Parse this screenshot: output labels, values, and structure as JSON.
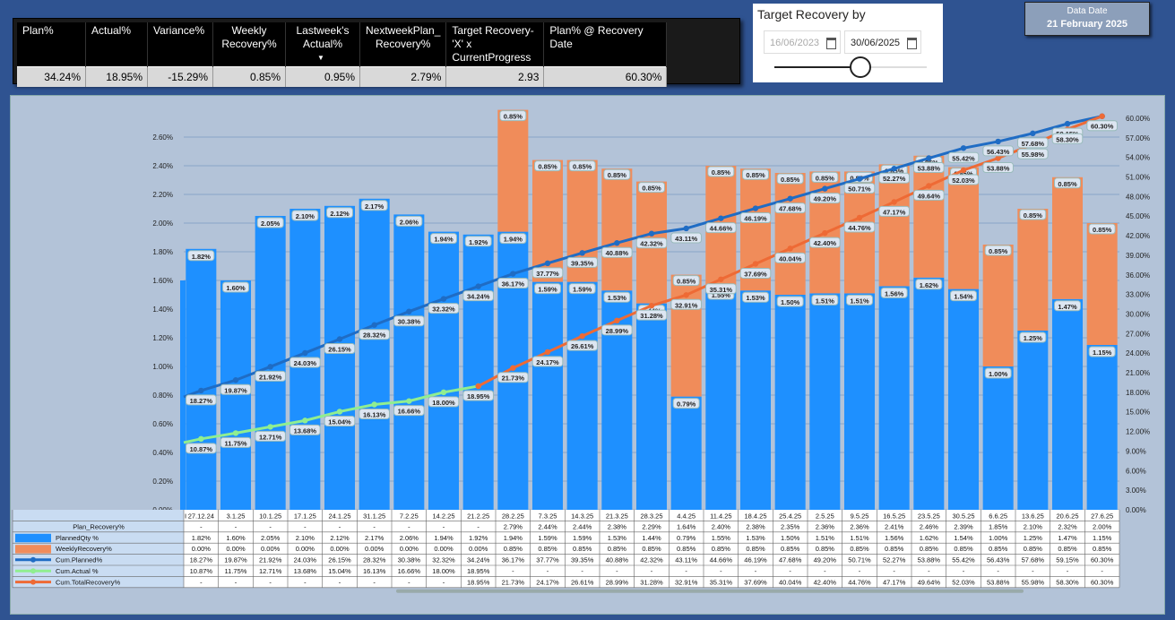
{
  "kpi": {
    "headers": [
      "Plan%",
      "Actual%",
      "Variance%",
      "Weekly Recovery%",
      "Lastweek's Actual%",
      "NextweekPlan_ Recovery%",
      "Target Recovery-'X' x CurrentProgress",
      "Plan% @ Recovery Date"
    ],
    "values": [
      "34.24%",
      "18.95%",
      "-15.29%",
      "0.85%",
      "0.95%",
      "2.79%",
      "2.93",
      "60.30%"
    ]
  },
  "target_recovery": {
    "title": "Target Recovery by",
    "start_date": "16/06/2023",
    "end_date": "30/06/2025",
    "slider_position": 0.57
  },
  "data_date": {
    "label": "Data Date",
    "value": "21 February 2025"
  },
  "colors": {
    "planned_qty": "#1e90ff",
    "weekly_recovery": "#f08c5a",
    "cum_planned": "#1f6cc4",
    "cum_actual": "#90ee90",
    "cum_total_recovery": "#ee6a35"
  },
  "chart_data": {
    "type": "bar",
    "stacked": true,
    "x": [
      "27.12.24",
      "3.1.25",
      "10.1.25",
      "17.1.25",
      "24.1.25",
      "31.1.25",
      "7.2.25",
      "14.2.25",
      "21.2.25",
      "28.2.25",
      "7.3.25",
      "14.3.25",
      "21.3.25",
      "28.3.25",
      "4.4.25",
      "11.4.25",
      "18.4.25",
      "25.4.25",
      "2.5.25",
      "9.5.25",
      "16.5.25",
      "23.5.25",
      "30.5.25",
      "6.6.25",
      "13.6.25",
      "20.6.25",
      "27.6.25"
    ],
    "left_axis": {
      "ticks": [
        "0.00%",
        "0.20%",
        "0.40%",
        "0.60%",
        "0.80%",
        "1.00%",
        "1.20%",
        "1.40%",
        "1.60%",
        "1.80%",
        "2.00%",
        "2.20%",
        "2.40%",
        "2.60%"
      ],
      "range": [
        0,
        2.8
      ]
    },
    "right_axis": {
      "ticks": [
        "0.00%",
        "3.00%",
        "6.00%",
        "9.00%",
        "12.00%",
        "15.00%",
        "18.00%",
        "21.00%",
        "24.00%",
        "27.00%",
        "30.00%",
        "33.00%",
        "36.00%",
        "39.00%",
        "42.00%",
        "45.00%",
        "48.00%",
        "51.00%",
        "54.00%",
        "57.00%",
        "60.00%"
      ],
      "range": [
        0,
        61.5
      ]
    },
    "series": [
      {
        "name": "PlannedQty %",
        "axis": "left",
        "type": "bar",
        "values": [
          1.82,
          1.6,
          2.05,
          2.1,
          2.12,
          2.17,
          2.06,
          1.94,
          1.92,
          1.94,
          1.59,
          1.59,
          1.53,
          1.44,
          0.79,
          1.55,
          1.53,
          1.5,
          1.51,
          1.51,
          1.56,
          1.62,
          1.54,
          1.0,
          1.25,
          1.47,
          1.15
        ],
        "row_labels": [
          "1.82%",
          "1.60%",
          "2.05%",
          "2.10%",
          "2.12%",
          "2.17%",
          "2.06%",
          "1.94%",
          "1.92%",
          "1.94%",
          "1.59%",
          "1.59%",
          "1.53%",
          "1.44%",
          "0.79%",
          "1.55%",
          "1.53%",
          "1.50%",
          "1.51%",
          "1.51%",
          "1.56%",
          "1.62%",
          "1.54%",
          "1.00%",
          "1.25%",
          "1.47%",
          "1.15%"
        ]
      },
      {
        "name": "WeeklyRecovery%",
        "axis": "left",
        "type": "bar",
        "values": [
          0,
          0,
          0,
          0,
          0,
          0,
          0,
          0,
          0,
          0.85,
          0.85,
          0.85,
          0.85,
          0.85,
          0.85,
          0.85,
          0.85,
          0.85,
          0.85,
          0.85,
          0.85,
          0.85,
          0.85,
          0.85,
          0.85,
          0.85,
          0.85
        ],
        "row_labels": [
          "0.00%",
          "0.00%",
          "0.00%",
          "0.00%",
          "0.00%",
          "0.00%",
          "0.00%",
          "0.00%",
          "0.00%",
          "0.85%",
          "0.85%",
          "0.85%",
          "0.85%",
          "0.85%",
          "0.85%",
          "0.85%",
          "0.85%",
          "0.85%",
          "0.85%",
          "0.85%",
          "0.85%",
          "0.85%",
          "0.85%",
          "0.85%",
          "0.85%",
          "0.85%",
          "0.85%"
        ]
      },
      {
        "name": "Cum.Planned%",
        "axis": "right",
        "type": "line",
        "values": [
          18.27,
          19.87,
          21.92,
          24.03,
          26.15,
          28.32,
          30.38,
          32.32,
          34.24,
          36.17,
          37.77,
          39.35,
          40.88,
          42.32,
          43.11,
          44.66,
          46.19,
          47.68,
          49.2,
          50.71,
          52.27,
          53.88,
          55.42,
          56.43,
          57.68,
          59.15,
          60.3
        ],
        "row_labels": [
          "18.27%",
          "19.87%",
          "21.92%",
          "24.03%",
          "26.15%",
          "28.32%",
          "30.38%",
          "32.32%",
          "34.24%",
          "36.17%",
          "37.77%",
          "39.35%",
          "40.88%",
          "42.32%",
          "43.11%",
          "44.66%",
          "46.19%",
          "47.68%",
          "49.20%",
          "50.71%",
          "52.27%",
          "53.88%",
          "55.42%",
          "56.43%",
          "57.68%",
          "59.15%",
          "60.30%"
        ]
      },
      {
        "name": "Cum.Actual %",
        "axis": "right",
        "type": "line",
        "values": [
          10.87,
          11.75,
          12.71,
          13.68,
          15.04,
          16.13,
          16.66,
          18.0,
          18.95,
          null,
          null,
          null,
          null,
          null,
          null,
          null,
          null,
          null,
          null,
          null,
          null,
          null,
          null,
          null,
          null,
          null,
          null
        ],
        "row_labels": [
          "10.87%",
          "11.75%",
          "12.71%",
          "13.68%",
          "15.04%",
          "16.13%",
          "16.66%",
          "18.00%",
          "18.95%",
          "-",
          "-",
          "-",
          "-",
          "-",
          "-",
          "-",
          "-",
          "-",
          "-",
          "-",
          "-",
          "-",
          "-",
          "-",
          "-",
          "-",
          "-"
        ]
      },
      {
        "name": "Cum.TotalRecovery%",
        "axis": "right",
        "type": "line",
        "values": [
          null,
          null,
          null,
          null,
          null,
          null,
          null,
          null,
          18.95,
          21.73,
          24.17,
          26.61,
          28.99,
          31.28,
          32.91,
          35.31,
          37.69,
          40.04,
          42.4,
          44.76,
          47.17,
          49.64,
          52.03,
          53.88,
          55.98,
          58.3,
          60.3
        ],
        "row_labels": [
          "-",
          "-",
          "-",
          "-",
          "-",
          "-",
          "-",
          "-",
          "18.95%",
          "21.73%",
          "24.17%",
          "26.61%",
          "28.99%",
          "31.28%",
          "32.91%",
          "35.31%",
          "37.69%",
          "40.04%",
          "42.40%",
          "44.76%",
          "47.17%",
          "49.64%",
          "52.03%",
          "53.88%",
          "55.98%",
          "58.30%",
          "60.30%"
        ]
      }
    ],
    "plan_recovery_row": {
      "label": "Plan_Recovery%",
      "values": [
        "-",
        "-",
        "-",
        "-",
        "-",
        "-",
        "-",
        "-",
        "-",
        "2.79%",
        "2.44%",
        "2.44%",
        "2.38%",
        "2.29%",
        "1.64%",
        "2.40%",
        "2.38%",
        "2.35%",
        "2.36%",
        "2.36%",
        "2.41%",
        "2.46%",
        "2.39%",
        "1.85%",
        "2.10%",
        "2.32%",
        "2.00%"
      ]
    },
    "left_label_hide": [
      0,
      1
    ],
    "grid": true,
    "legend": "table-left"
  }
}
